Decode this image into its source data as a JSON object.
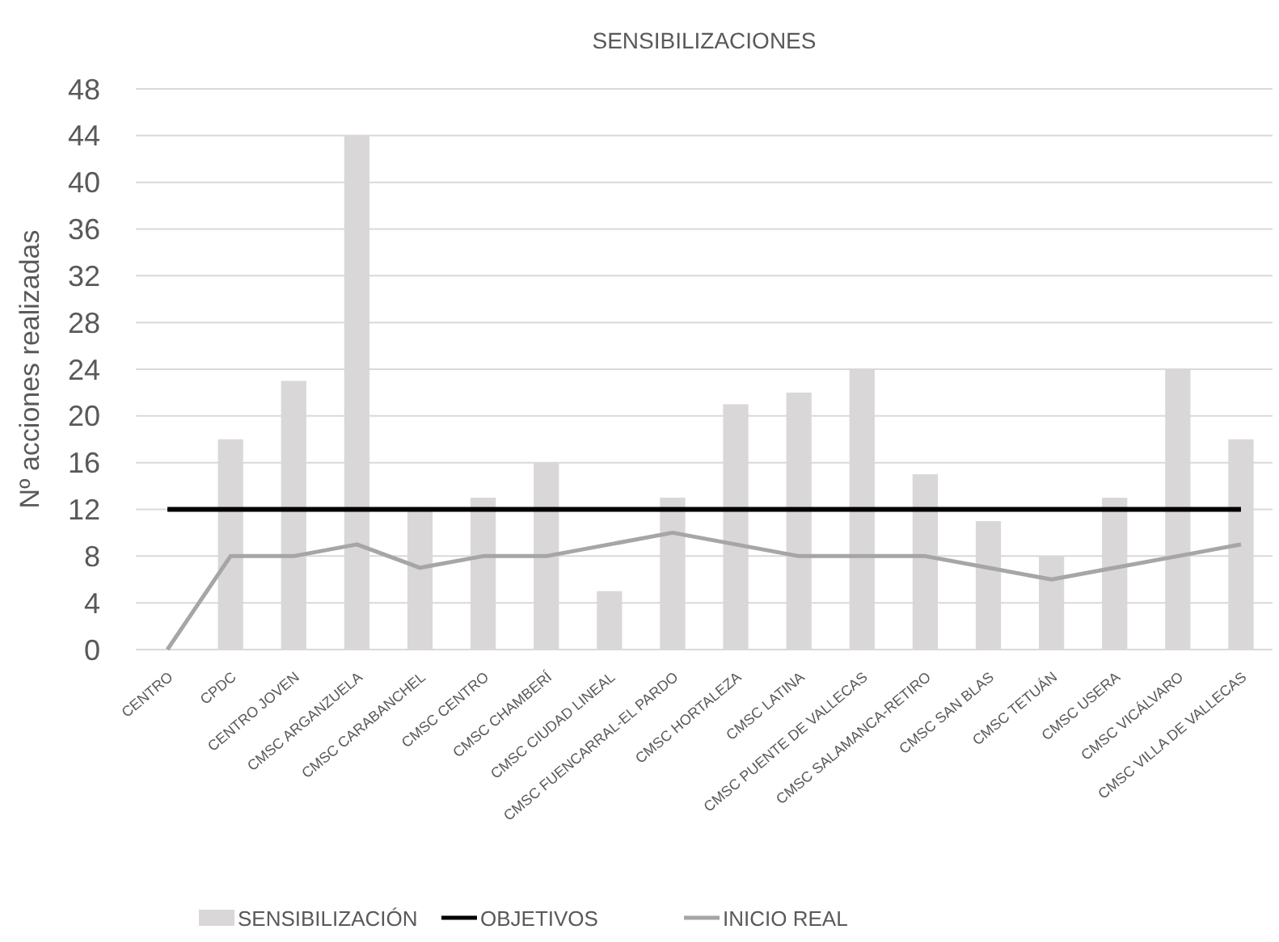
{
  "chart_data": {
    "type": "bar",
    "title": "SENSIBILIZACIONES",
    "ylabel": "Nº acciones realizadas",
    "categories": [
      "CENTRO",
      "CPDC",
      "CENTRO JOVEN",
      "CMSC ARGANZUELA",
      "CMSC CARABANCHEL",
      "CMSC CENTRO",
      "CMSC CHAMBERÍ",
      "CMSC CIUDAD LINEAL",
      "CMSC FUENCARRAL-EL PARDO",
      "CMSC HORTALEZA",
      "CMSC LATINA",
      "CMSC PUENTE DE VALLECAS",
      "CMSC SALAMANCA-RETIRO",
      "CMSC SAN BLAS",
      "CMSC TETUÁN",
      "CMSC USERA",
      "CMSC VICÁLVARO",
      "CMSC VILLA DE VALLECAS"
    ],
    "series": [
      {
        "name": "SENSIBILIZACIÓN",
        "color": "#d9d7d8",
        "values": [
          0,
          18,
          23,
          44,
          12,
          13,
          16,
          5,
          13,
          21,
          22,
          24,
          15,
          11,
          8,
          13,
          24,
          18
        ]
      },
      {
        "name": "OBJETIVOS",
        "type": "line",
        "color": "#000000",
        "values": [
          12,
          12,
          12,
          12,
          12,
          12,
          12,
          12,
          12,
          12,
          12,
          12,
          12,
          12,
          12,
          12,
          12,
          12
        ]
      },
      {
        "name": "INICIO REAL",
        "type": "line",
        "color": "#a6a6a6",
        "values": [
          0,
          8,
          8,
          9,
          7,
          8,
          8,
          9,
          10,
          9,
          8,
          8,
          8,
          7,
          6,
          7,
          8,
          9
        ]
      }
    ],
    "ylim": [
      0,
      48
    ],
    "yticks": [
      0,
      4,
      8,
      12,
      16,
      20,
      24,
      28,
      32,
      36,
      40,
      44,
      48
    ],
    "grid": "y",
    "legend": "bottom"
  }
}
